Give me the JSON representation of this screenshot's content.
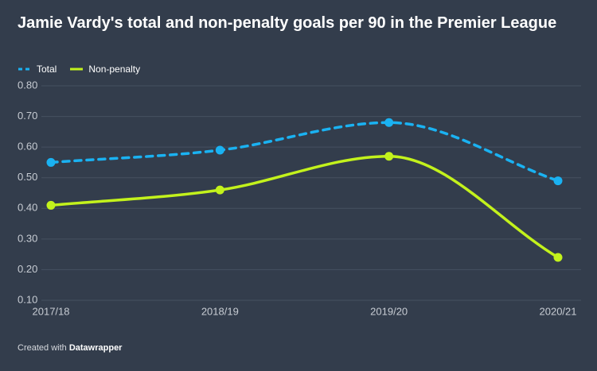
{
  "chart_data": {
    "type": "line",
    "title": "Jamie Vardy's total and non-penalty goals per 90 in the Premier League",
    "categories": [
      "2017/18",
      "2018/19",
      "2019/20",
      "2020/21"
    ],
    "series": [
      {
        "name": "Total",
        "color": "#1ab2f2",
        "dashed": true,
        "values": [
          0.55,
          0.59,
          0.68,
          0.49
        ]
      },
      {
        "name": "Non-penalty",
        "color": "#c3f21c",
        "dashed": false,
        "values": [
          0.41,
          0.46,
          0.57,
          0.24
        ]
      }
    ],
    "ylim": [
      0.1,
      0.8
    ],
    "yticks": [
      {
        "value": 0.1,
        "label": "0.10"
      },
      {
        "value": 0.2,
        "label": "0.20"
      },
      {
        "value": 0.3,
        "label": "0.30"
      },
      {
        "value": 0.4,
        "label": "0.40"
      },
      {
        "value": 0.5,
        "label": "0.50"
      },
      {
        "value": 0.6,
        "label": "0.60"
      },
      {
        "value": 0.7,
        "label": "0.70"
      },
      {
        "value": 0.8,
        "label": "0.80"
      }
    ],
    "grid": true,
    "footer": {
      "prefix": "Created with",
      "brand": "Datawrapper"
    }
  }
}
